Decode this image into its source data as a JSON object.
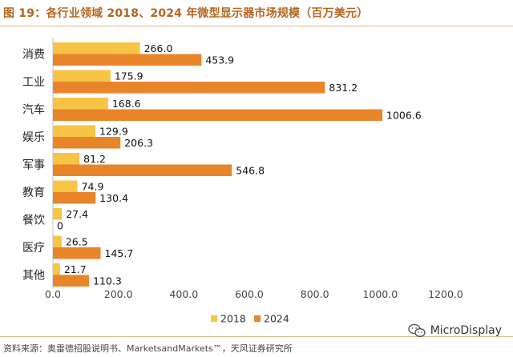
{
  "title": "图 19：各行业领域 2018、2024 年微型显示器市场规模（百万美元）",
  "source": "资料来源：奥雷德招股说明书、MarketsandMarkets™，天风证券研究所",
  "watermark": "MicroDisplay",
  "colors": {
    "s2018": "#f7c445",
    "s2024": "#e8852b",
    "accent": "#b5651d"
  },
  "chart_data": {
    "type": "bar",
    "orientation": "horizontal",
    "categories": [
      "消费",
      "工业",
      "汽车",
      "娱乐",
      "军事",
      "教育",
      "餐饮",
      "医疗",
      "其他"
    ],
    "series": [
      {
        "name": "2018",
        "values": [
          266.0,
          175.9,
          168.6,
          129.9,
          81.2,
          74.9,
          27.4,
          26.5,
          21.7
        ]
      },
      {
        "name": "2024",
        "values": [
          453.9,
          831.2,
          1006.6,
          206.3,
          546.8,
          130.4,
          0,
          145.7,
          110.3
        ]
      }
    ],
    "value_labels": [
      [
        "266.0",
        "175.9",
        "168.6",
        "129.9",
        "81.2",
        "74.9",
        "27.4",
        "26.5",
        "21.7"
      ],
      [
        "453.9",
        "831.2",
        "1006.6",
        "206.3",
        "546.8",
        "130.4",
        "0",
        "145.7",
        "110.3"
      ]
    ],
    "xlim": [
      0,
      1200
    ],
    "xticks": [
      "0.0",
      "200.0",
      "400.0",
      "600.0",
      "800.0",
      "1000.0",
      "1200.0"
    ],
    "legend": [
      "2018",
      "2024"
    ],
    "legend_position": "bottom",
    "grid": false
  }
}
